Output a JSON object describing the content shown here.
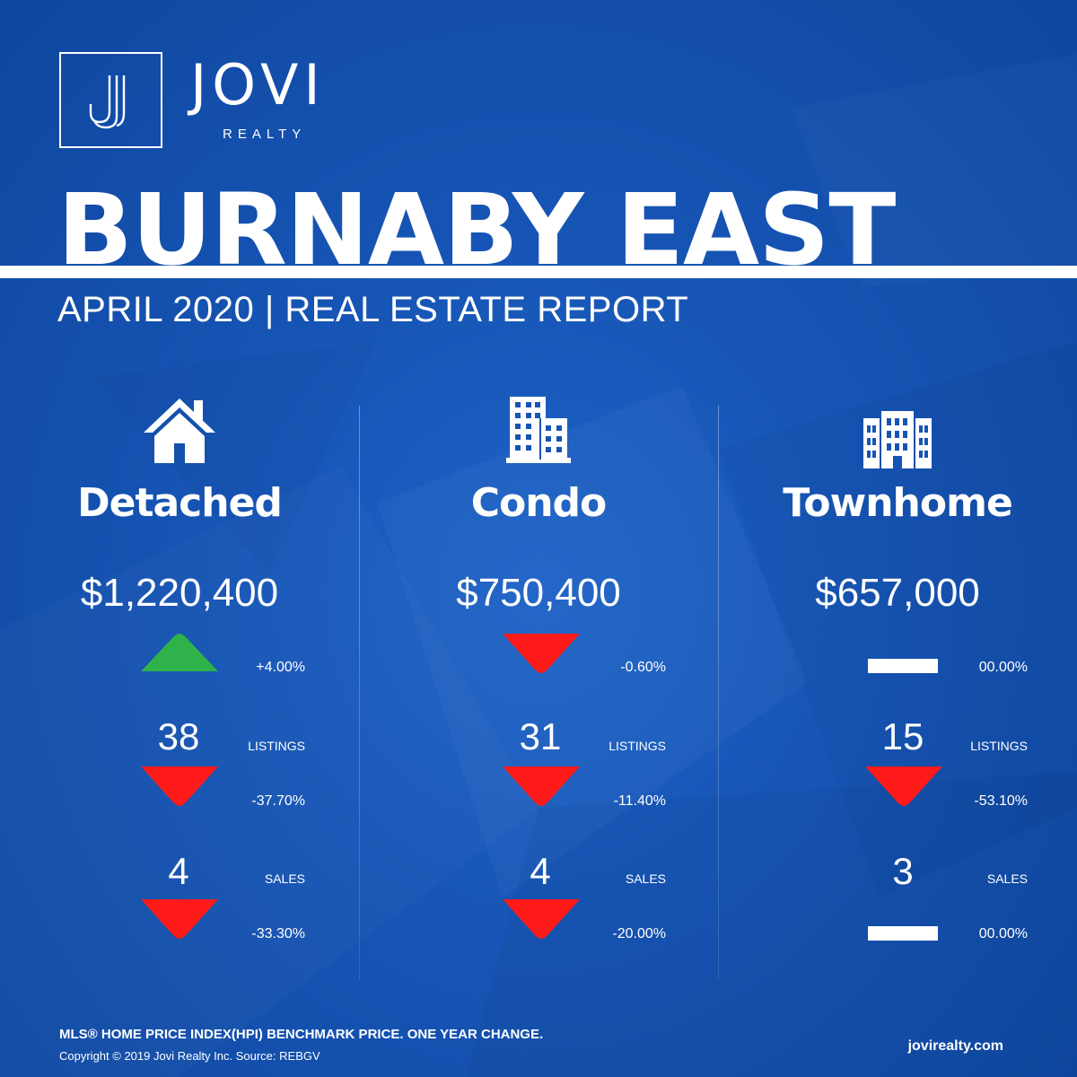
{
  "brand": {
    "monogram": "J",
    "name": "JOVI",
    "subtitle": "REALTY"
  },
  "title": "BURNABY EAST",
  "subtitle": "APRIL 2020 | REAL ESTATE REPORT",
  "colors": {
    "background": "#1654b4",
    "increase": "#2fb24a",
    "decrease": "#ff1a1a",
    "no_change": "#ffffff"
  },
  "columns": [
    {
      "icon": "house-icon",
      "label": "Detached",
      "price": "$1,220,400",
      "price_trend": "up",
      "price_change": "+4.00%",
      "listings": "38",
      "listings_label": "LISTINGS",
      "listings_trend": "down",
      "listings_change": "-37.70%",
      "sales": "4",
      "sales_label": "SALES",
      "sales_trend": "down",
      "sales_change": "-33.30%"
    },
    {
      "icon": "condo-building-icon",
      "label": "Condo",
      "price": "$750,400",
      "price_trend": "down",
      "price_change": "-0.60%",
      "listings": "31",
      "listings_label": "LISTINGS",
      "listings_trend": "down",
      "listings_change": "-11.40%",
      "sales": "4",
      "sales_label": "SALES",
      "sales_trend": "down",
      "sales_change": "-20.00%"
    },
    {
      "icon": "townhome-building-icon",
      "label": "Townhome",
      "price": "$657,000",
      "price_trend": "flat",
      "price_change": "00.00%",
      "listings": "15",
      "listings_label": "LISTINGS",
      "listings_trend": "down",
      "listings_change": "-53.10%",
      "sales": "3",
      "sales_label": "SALES",
      "sales_trend": "flat",
      "sales_change": "00.00%"
    }
  ],
  "footer": {
    "note": "MLS® HOME PRICE INDEX(HPI) BENCHMARK PRICE. ONE YEAR CHANGE.",
    "copyright": "Copyright © 2019 Jovi Realty Inc. Source: REBGV",
    "website": "jovirealty.com"
  }
}
